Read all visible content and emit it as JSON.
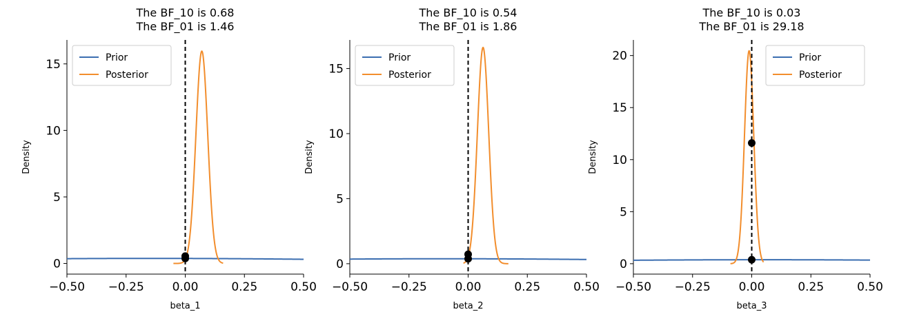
{
  "chart_data": [
    {
      "type": "line",
      "title_lines": [
        "The BF_10 is 0.68",
        "The BF_01 is 1.46"
      ],
      "xlabel": "beta_1",
      "ylabel": "Density",
      "xlim": [
        -0.5,
        0.5
      ],
      "ylim": [
        -0.8,
        16.8
      ],
      "xticks": [
        -0.5,
        -0.25,
        0.0,
        0.25,
        0.5
      ],
      "xtick_labels": [
        "−0.50",
        "−0.25",
        "0.00",
        "0.25",
        "0.50"
      ],
      "yticks": [
        0,
        5,
        10,
        15
      ],
      "ytick_labels": [
        "0",
        "5",
        "10",
        "15"
      ],
      "legend": {
        "position": "top-left",
        "entries": [
          "Prior",
          "Posterior"
        ]
      },
      "colors": {
        "prior": "#3a6db0",
        "posterior": "#f28d2c"
      },
      "series": [
        {
          "name": "Prior",
          "kind": "normal",
          "mean": -0.15,
          "sd": 1.05,
          "x_range": [
            -0.5,
            0.5
          ]
        },
        {
          "name": "Posterior",
          "kind": "normal",
          "mean": 0.07,
          "sd": 0.025,
          "x_range": [
            -0.05,
            0.16
          ]
        }
      ],
      "points": [
        {
          "x": 0.0,
          "y": 0.38
        },
        {
          "x": 0.0,
          "y": 0.55
        }
      ],
      "vline_x": 0.0
    },
    {
      "type": "line",
      "title_lines": [
        "The BF_10 is 0.54",
        "The BF_01 is 1.86"
      ],
      "xlabel": "beta_2",
      "ylabel": "Density",
      "xlim": [
        -0.5,
        0.5
      ],
      "ylim": [
        -0.8,
        17.2
      ],
      "xticks": [
        -0.5,
        -0.25,
        0.0,
        0.25,
        0.5
      ],
      "xtick_labels": [
        "−0.50",
        "−0.25",
        "0.00",
        "0.25",
        "0.50"
      ],
      "yticks": [
        0,
        5,
        10,
        15
      ],
      "ytick_labels": [
        "0",
        "5",
        "10",
        "15"
      ],
      "legend": {
        "position": "top-left",
        "entries": [
          "Prior",
          "Posterior"
        ]
      },
      "colors": {
        "prior": "#3a6db0",
        "posterior": "#f28d2c"
      },
      "series": [
        {
          "name": "Prior",
          "kind": "normal",
          "mean": -0.1,
          "sd": 1.05,
          "x_range": [
            -0.5,
            0.5
          ]
        },
        {
          "name": "Posterior",
          "kind": "normal",
          "mean": 0.063,
          "sd": 0.024,
          "x_range": [
            -0.02,
            0.17
          ]
        }
      ],
      "points": [
        {
          "x": 0.0,
          "y": 0.38
        },
        {
          "x": 0.0,
          "y": 0.72
        }
      ],
      "vline_x": 0.0
    },
    {
      "type": "line",
      "title_lines": [
        "The BF_10 is 0.03",
        "The BF_01 is 29.18"
      ],
      "xlabel": "beta_3",
      "ylabel": "Density",
      "xlim": [
        -0.5,
        0.5
      ],
      "ylim": [
        -1.0,
        21.5
      ],
      "xticks": [
        -0.5,
        -0.25,
        0.0,
        0.25,
        0.5
      ],
      "xtick_labels": [
        "−0.50",
        "−0.25",
        "0.00",
        "0.25",
        "0.50"
      ],
      "yticks": [
        0,
        5,
        10,
        15,
        20
      ],
      "ytick_labels": [
        "0",
        "5",
        "10",
        "15",
        "20"
      ],
      "legend": {
        "position": "top-right",
        "entries": [
          "Prior",
          "Posterior"
        ]
      },
      "colors": {
        "prior": "#3a6db0",
        "posterior": "#f28d2c"
      },
      "series": [
        {
          "name": "Prior",
          "kind": "normal",
          "mean": 0.05,
          "sd": 1.05,
          "x_range": [
            -0.5,
            0.5
          ]
        },
        {
          "name": "Posterior",
          "kind": "normal",
          "mean": -0.011,
          "sd": 0.0195,
          "x_range": [
            -0.09,
            0.05
          ]
        }
      ],
      "points": [
        {
          "x": 0.0,
          "y": 0.38
        },
        {
          "x": 0.0,
          "y": 11.6
        }
      ],
      "vline_x": 0.0
    }
  ]
}
